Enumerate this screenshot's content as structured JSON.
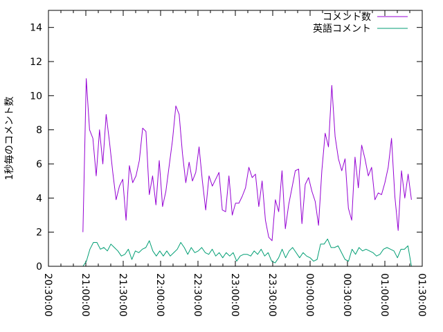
{
  "chart_data": {
    "type": "line",
    "title": "",
    "xlabel": "",
    "ylabel": "1秒毎のコメント数",
    "ylim": [
      0,
      15
    ],
    "yticks": [
      0,
      2,
      4,
      6,
      8,
      10,
      12,
      14
    ],
    "xlim_seconds": [
      0,
      18000
    ],
    "xticks": [
      "20:30:00",
      "21:00:00",
      "21:30:00",
      "22:00:00",
      "22:30:00",
      "23:00:00",
      "23:30:00",
      "00:00:00",
      "00:30:00",
      "01:00:00",
      "01:30:00"
    ],
    "grid": false,
    "legend_position": "top-right",
    "series": [
      {
        "name": "コメント数",
        "color": "#9400d3",
        "x_start": "20:57:40",
        "x_end": "01:21:20",
        "values": [
          2.0,
          11.0,
          8.0,
          7.5,
          5.3,
          8.0,
          6.0,
          8.9,
          7.3,
          5.5,
          3.9,
          4.7,
          5.1,
          2.7,
          5.9,
          4.9,
          5.3,
          6.2,
          8.1,
          7.9,
          4.2,
          5.3,
          3.6,
          6.2,
          3.5,
          4.4,
          5.9,
          7.4,
          9.4,
          8.9,
          6.6,
          4.9,
          6.1,
          5.0,
          5.5,
          7.0,
          5.0,
          3.3,
          5.3,
          4.7,
          5.1,
          5.5,
          3.3,
          3.2,
          5.3,
          3.0,
          3.7,
          3.7,
          4.1,
          4.6,
          5.8,
          5.2,
          5.4,
          3.5,
          5.0,
          2.7,
          1.7,
          1.5,
          3.9,
          3.2,
          5.6,
          2.2,
          3.6,
          4.6,
          5.6,
          5.7,
          2.5,
          4.8,
          5.2,
          4.4,
          3.8,
          2.4,
          5.6,
          7.8,
          7.0,
          10.6,
          7.6,
          6.3,
          5.6,
          6.3,
          3.4,
          2.7,
          6.4,
          4.6,
          7.1,
          6.3,
          5.3,
          5.8,
          3.9,
          4.3,
          4.2,
          4.9,
          5.8,
          7.5,
          4.1,
          2.1,
          5.6,
          4.0,
          5.4,
          3.9
        ]
      },
      {
        "name": "英語コメント",
        "color": "#009e73",
        "x_start": "20:57:40",
        "x_end": "01:21:20",
        "values": [
          0.0,
          0.3,
          1.0,
          1.4,
          1.4,
          1.0,
          1.1,
          0.9,
          1.3,
          1.1,
          0.9,
          0.6,
          0.7,
          1.0,
          0.4,
          0.9,
          0.8,
          1.0,
          1.1,
          1.5,
          0.9,
          0.6,
          0.9,
          0.6,
          0.9,
          0.6,
          0.8,
          1.0,
          1.4,
          1.1,
          0.7,
          1.1,
          0.8,
          0.9,
          1.1,
          0.8,
          0.7,
          1.0,
          0.6,
          0.8,
          0.5,
          0.8,
          0.6,
          0.8,
          0.3,
          0.6,
          0.7,
          0.7,
          0.6,
          0.9,
          0.7,
          1.0,
          0.6,
          0.8,
          0.3,
          0.2,
          0.5,
          1.0,
          0.5,
          0.9,
          1.1,
          0.8,
          0.5,
          0.8,
          0.6,
          0.5,
          0.3,
          0.4,
          1.3,
          1.3,
          1.6,
          1.1,
          1.1,
          1.2,
          0.8,
          0.4,
          0.3,
          1.0,
          0.7,
          1.1,
          0.9,
          1.0,
          0.9,
          0.8,
          0.6,
          0.7,
          1.0,
          1.1,
          1.0,
          0.9,
          0.5,
          1.0,
          1.0,
          1.2,
          0.0
        ]
      }
    ]
  }
}
